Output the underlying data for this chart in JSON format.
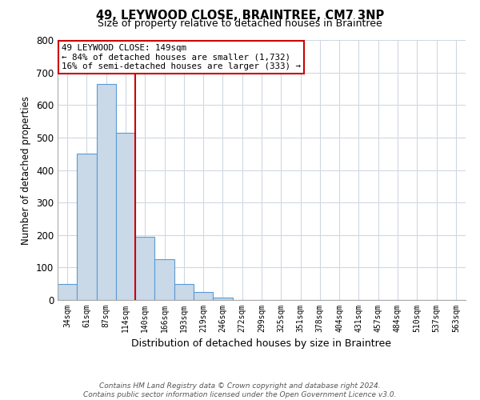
{
  "title": "49, LEYWOOD CLOSE, BRAINTREE, CM7 3NP",
  "subtitle": "Size of property relative to detached houses in Braintree",
  "xlabel": "Distribution of detached houses by size in Braintree",
  "ylabel": "Number of detached properties",
  "bar_labels": [
    "34sqm",
    "61sqm",
    "87sqm",
    "114sqm",
    "140sqm",
    "166sqm",
    "193sqm",
    "219sqm",
    "246sqm",
    "272sqm",
    "299sqm",
    "325sqm",
    "351sqm",
    "378sqm",
    "404sqm",
    "431sqm",
    "457sqm",
    "484sqm",
    "510sqm",
    "537sqm",
    "563sqm"
  ],
  "bar_values": [
    50,
    450,
    665,
    515,
    195,
    125,
    50,
    25,
    8,
    0,
    0,
    0,
    0,
    0,
    0,
    0,
    0,
    0,
    0,
    0,
    0
  ],
  "bar_color": "#c9d9e8",
  "bar_edgecolor": "#5b9bd5",
  "vline_color": "#cc0000",
  "ylim": [
    0,
    800
  ],
  "yticks": [
    0,
    100,
    200,
    300,
    400,
    500,
    600,
    700,
    800
  ],
  "annotation_title": "49 LEYWOOD CLOSE: 149sqm",
  "annotation_line1": "← 84% of detached houses are smaller (1,732)",
  "annotation_line2": "16% of semi-detached houses are larger (333) →",
  "annotation_box_color": "#ffffff",
  "annotation_box_edgecolor": "#cc0000",
  "footer_line1": "Contains HM Land Registry data © Crown copyright and database right 2024.",
  "footer_line2": "Contains public sector information licensed under the Open Government Licence v3.0.",
  "background_color": "#ffffff",
  "grid_color": "#d0d8e4"
}
